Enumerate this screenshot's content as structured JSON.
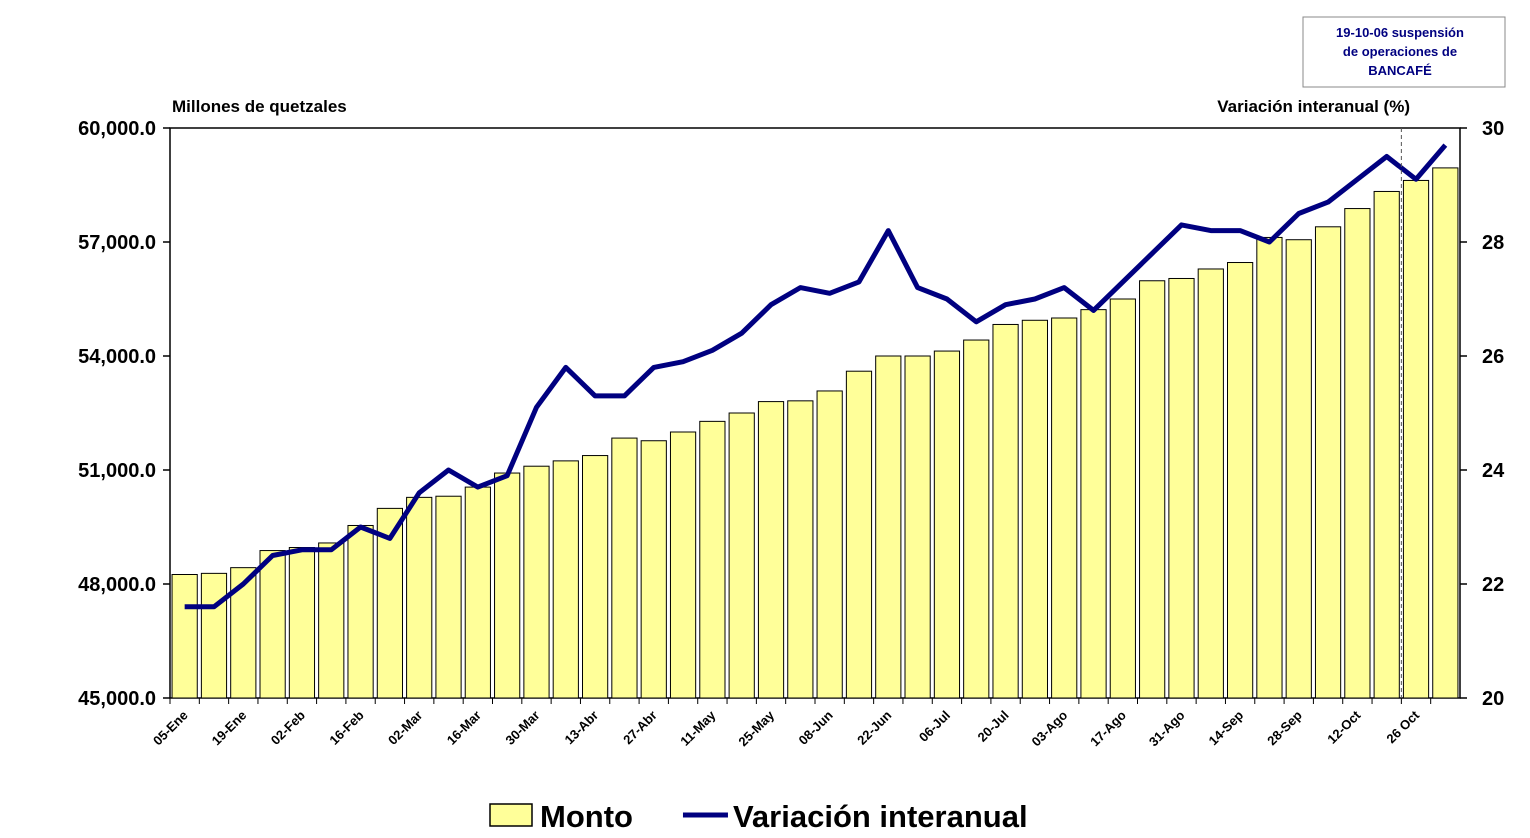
{
  "chart_data": {
    "type": "bar_line",
    "y_label": "Millones de quetzales",
    "y2_label": "Variación interanual (%)",
    "annotation": [
      "19-10-06 suspensión",
      "de operaciones de",
      "BANCAFÉ"
    ],
    "categories": [
      "05-Ene",
      null,
      "19-Ene",
      null,
      "02-Feb",
      null,
      "16-Feb",
      null,
      "02-Mar",
      null,
      "16-Mar",
      null,
      "30-Mar",
      null,
      "13-Abr",
      null,
      "27-Abr",
      null,
      "11-May",
      null,
      "25-May",
      null,
      "08-Jun",
      null,
      "22-Jun",
      null,
      "06-Jul",
      null,
      "20-Jul",
      null,
      "03-Ago",
      null,
      "17-Ago",
      null,
      "31-Ago",
      null,
      "14-Sep",
      null,
      "28-Sep",
      null,
      "12-Oct",
      null,
      "26 Oct",
      null
    ],
    "series": [
      {
        "name": "Monto",
        "type": "bar",
        "color": "#ffff99",
        "values": [
          48250,
          48280,
          48430,
          48880,
          48960,
          49080,
          49540,
          49990,
          50280,
          50310,
          50550,
          50920,
          51100,
          51240,
          51380,
          51840,
          51770,
          52000,
          52280,
          52500,
          52800,
          52820,
          53080,
          53600,
          54000,
          54000,
          54130,
          54420,
          54830,
          54940,
          55000,
          55220,
          55500,
          55980,
          56040,
          56290,
          56460,
          57120,
          57060,
          57400,
          57880,
          58330,
          58620,
          58950
        ]
      },
      {
        "name": "Variación interanual",
        "type": "line",
        "axis": "y2",
        "color": "#000080",
        "values": [
          21.6,
          21.6,
          22.0,
          22.5,
          22.6,
          22.6,
          23.0,
          22.8,
          23.6,
          24.0,
          23.7,
          23.9,
          25.1,
          25.8,
          25.3,
          25.3,
          25.8,
          25.9,
          26.1,
          26.4,
          26.9,
          27.2,
          27.1,
          27.3,
          28.2,
          27.2,
          27.0,
          26.6,
          26.9,
          27.0,
          27.2,
          26.8,
          27.3,
          27.8,
          28.3,
          28.2,
          28.2,
          28.0,
          28.5,
          28.7,
          29.1,
          29.5,
          29.1,
          29.7
        ]
      }
    ],
    "ylim": [
      45000,
      60000
    ],
    "yticks": [
      {
        "value": 45000,
        "label": "45,000.0"
      },
      {
        "value": 48000,
        "label": "48,000.0"
      },
      {
        "value": 51000,
        "label": "51,000.0"
      },
      {
        "value": 54000,
        "label": "54,000.0"
      },
      {
        "value": 57000,
        "label": "57,000.0"
      },
      {
        "value": 60000,
        "label": "60,000.0"
      }
    ],
    "y2lim": [
      20,
      30
    ],
    "y2ticks": [
      20,
      22,
      24,
      26,
      28,
      30
    ],
    "grid": false
  }
}
